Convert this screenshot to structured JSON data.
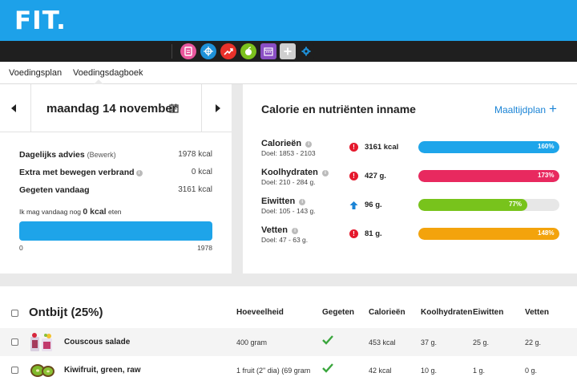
{
  "app": {
    "logo": "FIT.",
    "toolbar_icons": [
      {
        "name": "document-icon",
        "color": "#e9569c"
      },
      {
        "name": "target-icon",
        "color": "#1e91d8"
      },
      {
        "name": "trend-icon",
        "color": "#e8312a"
      },
      {
        "name": "apple-icon",
        "color": "#7cc11e"
      },
      {
        "name": "calendar-icon",
        "color": "#8a4fc4"
      },
      {
        "name": "plus-icon",
        "color": "#cfcfcf"
      },
      {
        "name": "gear-icon",
        "color": "#1e8fd6"
      }
    ]
  },
  "subnav": {
    "tabs": [
      "Voedingsplan",
      "Voedingsdagboek"
    ]
  },
  "day": {
    "date": "maandag 14 november",
    "calendar_icon": "calendar-icon"
  },
  "summary": {
    "rows": [
      {
        "label": "Dagelijks advies",
        "small": "(Bewerk)",
        "value": "1978 kcal"
      },
      {
        "label": "Extra met bewegen verbrand",
        "value": "0 kcal"
      },
      {
        "label": "Gegeten vandaag",
        "value": "3161 kcal"
      }
    ],
    "may_prefix": "Ik mag vandaag nog",
    "may_value": "0 kcal",
    "may_suffix": "eten",
    "bar_fill": 1.0,
    "scale_min": "0",
    "scale_max": "1978"
  },
  "nutrients": {
    "title": "Calorie en nutriënten inname",
    "mealplan_link": "Maaltijdplan",
    "mealplan_plus": "+",
    "rows": [
      {
        "name": "Calorieën",
        "goal": "Doel: 1853 - 2103",
        "status": "warning-icon",
        "value": "3161 kcal",
        "percent": 160,
        "pct_label": "160%",
        "color": "#1ea5ea"
      },
      {
        "name": "Koolhydraten",
        "goal": "Doel: 210 - 284 g.",
        "status": "warning-icon",
        "value": "427 g.",
        "percent": 173,
        "pct_label": "173%",
        "color": "#e8295f"
      },
      {
        "name": "Eiwitten",
        "goal": "Doel: 105 - 143 g.",
        "status": "arrow-up-icon",
        "value": "96 g.",
        "percent": 77,
        "pct_label": "77%",
        "color": "#78c31c"
      },
      {
        "name": "Vetten",
        "goal": "Doel: 47 - 63 g.",
        "status": "warning-icon",
        "value": "81 g.",
        "percent": 148,
        "pct_label": "148%",
        "color": "#f3a30c"
      }
    ]
  },
  "meal": {
    "title": "Ontbijt (25%)",
    "columns": [
      "Hoeveelheid",
      "Gegeten",
      "Calorieën",
      "Koolhydraten",
      "Eiwitten",
      "Vetten"
    ],
    "items": [
      {
        "name": "Couscous salade",
        "amount": "400 gram",
        "eaten": true,
        "kcal": "453 kcal",
        "carbs": "37 g.",
        "protein": "25 g.",
        "fat": "22 g."
      },
      {
        "name": "Kiwifruit, green, raw",
        "amount": "1 fruit (2\" dia) (69 gram",
        "eaten": true,
        "kcal": "42 kcal",
        "carbs": "10 g.",
        "protein": "1 g.",
        "fat": "0 g."
      }
    ]
  }
}
